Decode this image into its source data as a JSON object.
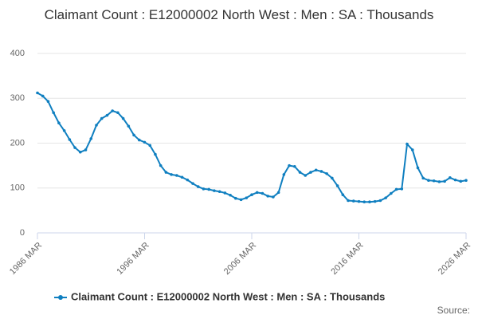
{
  "chart_data": {
    "type": "line",
    "title": "Claimant Count : E12000002 North West : Men : SA : Thousands",
    "x": [
      "1986 MAR",
      "1986 SEP",
      "1987 MAR",
      "1987 SEP",
      "1988 MAR",
      "1988 SEP",
      "1989 MAR",
      "1989 SEP",
      "1990 MAR",
      "1990 SEP",
      "1991 MAR",
      "1991 SEP",
      "1992 MAR",
      "1992 SEP",
      "1993 MAR",
      "1993 SEP",
      "1994 MAR",
      "1994 SEP",
      "1995 MAR",
      "1995 SEP",
      "1996 MAR",
      "1996 SEP",
      "1997 MAR",
      "1997 SEP",
      "1998 MAR",
      "1998 SEP",
      "1999 MAR",
      "1999 SEP",
      "2000 MAR",
      "2000 SEP",
      "2001 MAR",
      "2001 SEP",
      "2002 MAR",
      "2002 SEP",
      "2003 MAR",
      "2003 SEP",
      "2004 MAR",
      "2004 SEP",
      "2005 MAR",
      "2005 SEP",
      "2006 MAR",
      "2006 SEP",
      "2007 MAR",
      "2007 SEP",
      "2008 MAR",
      "2008 SEP",
      "2009 MAR",
      "2009 SEP",
      "2010 MAR",
      "2010 SEP",
      "2011 MAR",
      "2011 SEP",
      "2012 MAR",
      "2012 SEP",
      "2013 MAR",
      "2013 SEP",
      "2014 MAR",
      "2014 SEP",
      "2015 MAR",
      "2015 SEP",
      "2016 MAR",
      "2016 SEP",
      "2017 MAR",
      "2017 SEP",
      "2018 MAR",
      "2018 SEP",
      "2019 MAR",
      "2019 SEP",
      "2020 MAR",
      "2020 SEP",
      "2021 MAR",
      "2021 SEP",
      "2022 MAR",
      "2022 SEP",
      "2023 MAR",
      "2023 SEP",
      "2024 MAR",
      "2024 SEP",
      "2025 MAR",
      "2025 SEP",
      "2026 MAR"
    ],
    "series": [
      {
        "name": "Claimant Count : E12000002 North West : Men : SA : Thousands",
        "color": "#0f7fc0",
        "values": [
          312,
          305,
          293,
          268,
          245,
          228,
          208,
          190,
          180,
          185,
          210,
          240,
          255,
          262,
          272,
          268,
          255,
          238,
          218,
          207,
          202,
          195,
          175,
          150,
          135,
          130,
          128,
          124,
          118,
          110,
          103,
          98,
          97,
          94,
          92,
          89,
          84,
          77,
          74,
          78,
          85,
          90,
          88,
          82,
          80,
          90,
          130,
          150,
          148,
          135,
          128,
          135,
          140,
          137,
          132,
          122,
          105,
          85,
          72,
          71,
          70,
          69,
          69,
          70,
          72,
          78,
          88,
          97,
          98,
          198,
          185,
          145,
          122,
          117,
          116,
          114,
          115,
          123,
          118,
          115,
          117
        ]
      }
    ],
    "xticks": [
      "1986 MAR",
      "1996 MAR",
      "2006 MAR",
      "2016 MAR",
      "2026 MAR"
    ],
    "ylim": [
      0,
      400
    ],
    "yticks": [
      0,
      100,
      200,
      300,
      400
    ],
    "grid": true,
    "source": "Source:"
  }
}
